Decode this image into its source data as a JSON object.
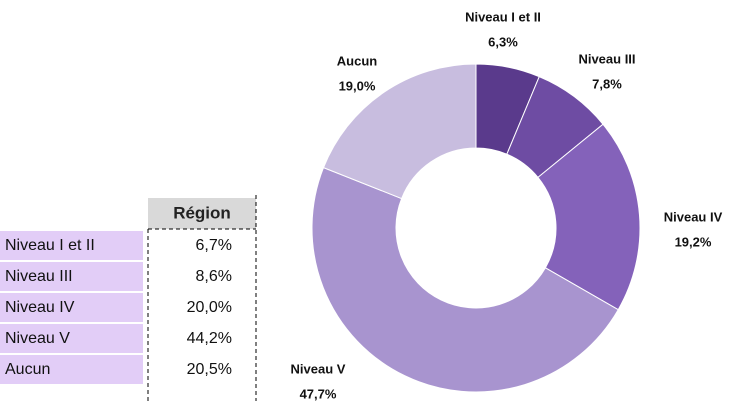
{
  "chart_data": {
    "type": "donut",
    "categories": [
      "Niveau I et II",
      "Niveau III",
      "Niveau IV",
      "Niveau V",
      "Aucun"
    ],
    "values": [
      6.3,
      7.8,
      19.2,
      47.7,
      19.0
    ],
    "value_labels": [
      "6,3%",
      "7,8%",
      "19,2%",
      "47,7%",
      "19,0%"
    ],
    "colors": [
      "#5a3a8c",
      "#6e4ca3",
      "#8462ba",
      "#a894cf",
      "#c8bddf"
    ]
  },
  "table": {
    "header": "Région",
    "rows": [
      [
        "Niveau I et II",
        "6,7%"
      ],
      [
        "Niveau III",
        "8,6%"
      ],
      [
        "Niveau IV",
        "20,0%"
      ],
      [
        "Niveau V",
        "44,2%"
      ],
      [
        "Aucun",
        "20,5%"
      ]
    ]
  }
}
